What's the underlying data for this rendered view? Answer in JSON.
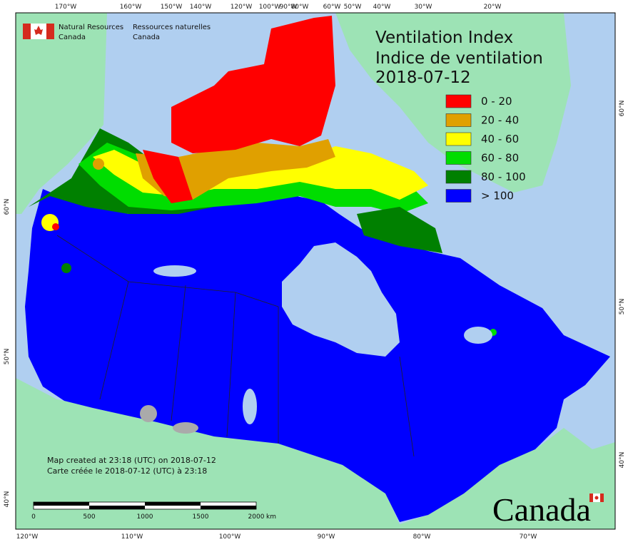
{
  "header": {
    "agency_en": [
      "Natural Resources",
      "Canada"
    ],
    "agency_fr": [
      "Ressources naturelles",
      "Canada"
    ]
  },
  "title": [
    "Ventilation Index",
    "Indice de ventilation",
    "2018-07-12"
  ],
  "legend": [
    {
      "label": "0 - 20",
      "color": "#ff0000"
    },
    {
      "label": "20 - 40",
      "color": "#e0a000"
    },
    {
      "label": "40 - 60",
      "color": "#ffff00"
    },
    {
      "label": "60 - 80",
      "color": "#00dd00"
    },
    {
      "label": "80 - 100",
      "color": "#008000"
    },
    {
      "label": "> 100",
      "color": "#0000ff"
    }
  ],
  "top_labels": [
    "170°W",
    "160°W",
    "150°W",
    "140°W",
    "120°W",
    "100°W",
    "90°W",
    "80°W",
    "60°W",
    "50°W",
    "40°W",
    "30°W",
    "20°W"
  ],
  "bottom_labels": [
    "120°W",
    "110°W",
    "100°W",
    "90°W",
    "80°W",
    "70°W"
  ],
  "left_labels": [
    "60°N",
    "50°N",
    "40°N"
  ],
  "right_labels": [
    "60°N",
    "50°N",
    "40°N"
  ],
  "credits": [
    "Map created at 23:18 (UTC) on 2018-07-12",
    "Carte créée le 2018-07-12 (UTC) à 23:18"
  ],
  "scale_bar": {
    "labels": [
      "0",
      "500",
      "1000",
      "1500",
      "2000"
    ],
    "unit": "km"
  },
  "wordmark": "Canada"
}
